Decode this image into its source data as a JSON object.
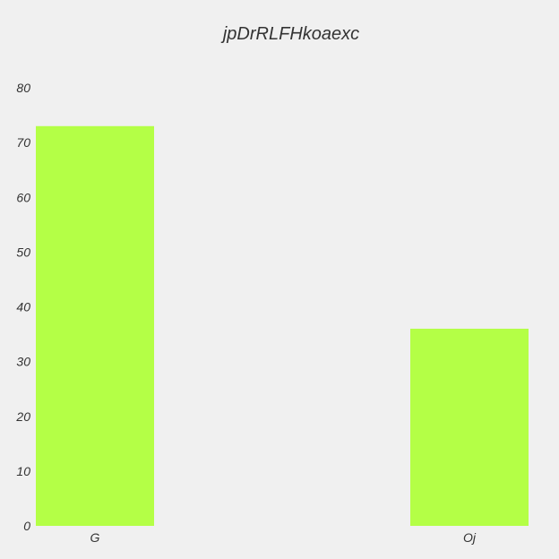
{
  "chart_data": {
    "type": "bar",
    "title": "jpDrRLFHkoaexc",
    "xlabel": "",
    "ylabel": "",
    "categories": [
      "G",
      "Oj"
    ],
    "values": [
      73,
      36
    ],
    "ylim": [
      0,
      80
    ],
    "yticks": [
      0,
      10,
      20,
      30,
      40,
      50,
      60,
      70,
      80
    ],
    "bar_color": "#b4ff46",
    "background_color": "#f0f0f0",
    "grid": false,
    "legend": "none"
  }
}
